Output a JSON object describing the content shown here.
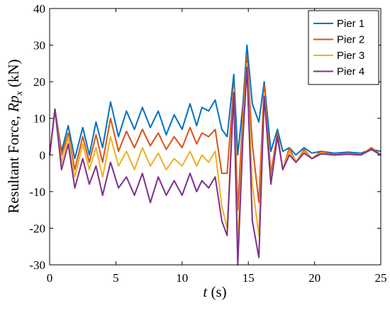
{
  "chart_data": {
    "type": "line",
    "xlabel_var": "t",
    "xlabel_unit": " (s)",
    "ylabel_prefix": "Resultant Force, ",
    "ylabel_var": "Rp",
    "ylabel_sub": "x",
    "ylabel_unit": " (kN)",
    "xlim": [
      0,
      25
    ],
    "ylim": [
      -30,
      40
    ],
    "xticks": [
      "0",
      "5",
      "10",
      "15",
      "20",
      "25"
    ],
    "yticks": [
      "-30",
      "-20",
      "-10",
      "0",
      "10",
      "20",
      "30",
      "40"
    ],
    "grid": false,
    "legend_position": "top-right",
    "series": [
      {
        "name": "Pier 1",
        "color": "#0072BD",
        "x": [
          0,
          0.4,
          0.9,
          1.4,
          1.9,
          2.5,
          3.0,
          3.5,
          4.0,
          4.6,
          5.2,
          5.8,
          6.4,
          7.0,
          7.6,
          8.2,
          8.8,
          9.4,
          10.0,
          10.6,
          11.1,
          11.5,
          12.0,
          12.5,
          13.0,
          13.4,
          13.9,
          14.2,
          14.6,
          14.9,
          15.3,
          15.8,
          16.2,
          16.7,
          17.2,
          17.6,
          18.1,
          18.6,
          19.2,
          19.8,
          20.5,
          21.5,
          22.5,
          23.5,
          24.3,
          25.0
        ],
        "y": [
          0,
          12.5,
          1,
          8,
          -1,
          7.5,
          0,
          9,
          2,
          14.5,
          5,
          12,
          7,
          13,
          7.5,
          12,
          5.5,
          11,
          7,
          14,
          8,
          13,
          12,
          15,
          7,
          5,
          22,
          0,
          14,
          30,
          14,
          9,
          20,
          1,
          7,
          1,
          2,
          0,
          2,
          0.5,
          1,
          0.5,
          0.8,
          0.5,
          1.5,
          1
        ]
      },
      {
        "name": "Pier 2",
        "color": "#D95319",
        "x": [
          0,
          0.4,
          0.9,
          1.4,
          1.9,
          2.5,
          3.0,
          3.5,
          4.0,
          4.6,
          5.2,
          5.8,
          6.4,
          7.0,
          7.6,
          8.2,
          8.8,
          9.4,
          10.0,
          10.6,
          11.1,
          11.5,
          12.0,
          12.5,
          13.0,
          13.4,
          13.9,
          14.2,
          14.6,
          14.9,
          15.3,
          15.8,
          16.2,
          16.7,
          17.2,
          17.6,
          18.1,
          18.6,
          19.2,
          19.8,
          20.5,
          21.5,
          22.5,
          23.5,
          24.3,
          25.0
        ],
        "y": [
          0,
          12.5,
          0,
          6,
          -4,
          5,
          -2,
          5.5,
          -2,
          10,
          1,
          6.5,
          2,
          7,
          2.5,
          6,
          1.5,
          5,
          2,
          7.5,
          3,
          6,
          5,
          7,
          -5,
          -5,
          19,
          -15,
          12,
          27,
          3,
          -13,
          19,
          -5,
          6,
          -4,
          2,
          -2,
          1.5,
          -1,
          1,
          0,
          0.5,
          0,
          2,
          0
        ]
      },
      {
        "name": "Pier 3",
        "color": "#EDB120",
        "x": [
          0,
          0.4,
          0.9,
          1.4,
          1.9,
          2.5,
          3.0,
          3.5,
          4.0,
          4.6,
          5.2,
          5.8,
          6.4,
          7.0,
          7.6,
          8.2,
          8.8,
          9.4,
          10.0,
          10.6,
          11.1,
          11.5,
          12.0,
          12.5,
          13.0,
          13.4,
          13.9,
          14.2,
          14.6,
          14.9,
          15.3,
          15.8,
          16.2,
          16.7,
          17.2,
          17.6,
          18.1,
          18.6,
          19.2,
          19.8,
          20.5,
          21.5,
          22.5,
          23.5,
          24.3,
          25.0
        ],
        "y": [
          0,
          12.5,
          -2,
          5,
          -6,
          3,
          -4,
          2,
          -6,
          5,
          -3,
          1,
          -4,
          2,
          -3,
          0.5,
          -4,
          -1,
          -3,
          1,
          -3,
          0,
          -2,
          1,
          -14,
          -20,
          18,
          -25,
          8,
          25,
          -8,
          -22,
          17,
          -7,
          5,
          -4,
          1,
          -2,
          1,
          -1,
          0.5,
          0,
          0.3,
          0,
          1.5,
          0
        ]
      },
      {
        "name": "Pier 4",
        "color": "#7E2F8E",
        "x": [
          0,
          0.4,
          0.9,
          1.4,
          1.9,
          2.5,
          3.0,
          3.5,
          4.0,
          4.6,
          5.2,
          5.8,
          6.4,
          7.0,
          7.6,
          8.2,
          8.8,
          9.4,
          10.0,
          10.6,
          11.1,
          11.5,
          12.0,
          12.5,
          13.0,
          13.4,
          13.9,
          14.2,
          14.6,
          14.9,
          15.3,
          15.8,
          16.2,
          16.7,
          17.2,
          17.6,
          18.1,
          18.6,
          19.2,
          19.8,
          20.5,
          21.5,
          22.5,
          23.5,
          24.3,
          25.0
        ],
        "y": [
          0,
          12.5,
          -4,
          3,
          -9,
          -1,
          -8,
          -3,
          -11,
          -2,
          -9,
          -6,
          -11,
          -5,
          -13,
          -6,
          -11,
          -7,
          -11,
          -5,
          -10,
          -7,
          -9,
          -6,
          -18,
          -22,
          17,
          -30,
          5,
          24,
          -18,
          -28,
          16,
          -8,
          5,
          -4,
          0,
          -2,
          0.5,
          -1,
          0.3,
          0,
          0.2,
          0,
          1.5,
          0
        ]
      }
    ]
  }
}
